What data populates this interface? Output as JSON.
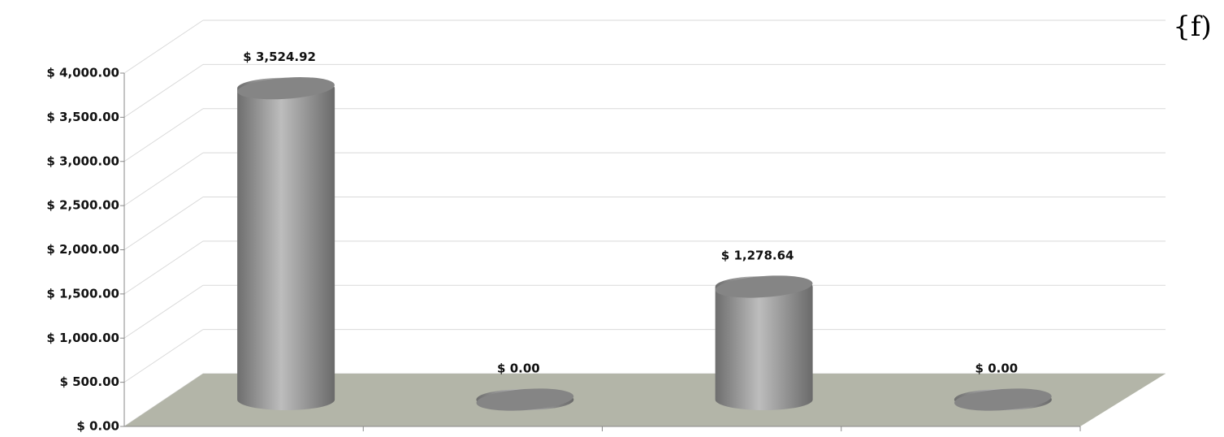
{
  "chart_data": {
    "type": "bar",
    "annotation": "{f)",
    "categories": [
      null,
      null,
      null,
      null
    ],
    "values": [
      3524.92,
      0,
      1278.64,
      0
    ],
    "value_labels": [
      "$ 3,524.92",
      "$ 0.00",
      "$ 1,278.64",
      "$ 0.00"
    ],
    "color": "#a6a6a6",
    "ylim": [
      0,
      4000
    ],
    "yticks": [
      {
        "value": 0,
        "label": "$ 0.00"
      },
      {
        "value": 500,
        "label": "$ 500.00"
      },
      {
        "value": 1000,
        "label": "$ 1,000.00"
      },
      {
        "value": 1500,
        "label": "$ 1,500.00"
      },
      {
        "value": 2000,
        "label": "$ 2,000.00"
      },
      {
        "value": 2500,
        "label": "$ 2,500.00"
      },
      {
        "value": 3000,
        "label": "$ 3,000.00"
      },
      {
        "value": 3500,
        "label": "$ 3,500.00"
      },
      {
        "value": 4000,
        "label": "$ 4,000.00"
      }
    ],
    "grid": true
  }
}
